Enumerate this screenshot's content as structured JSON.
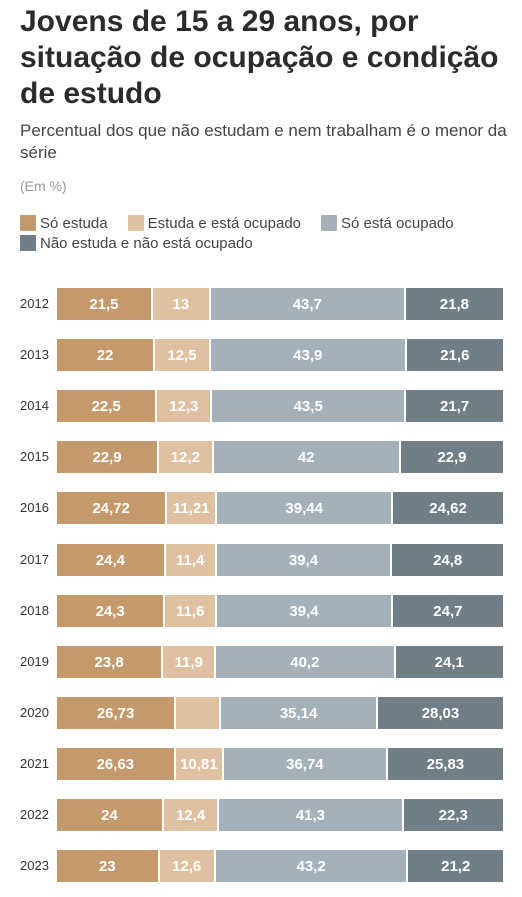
{
  "title": "Jovens de 15 a 29 anos, por situação de ocupação e condição de estudo",
  "subtitle": "Percentual dos que não estudam e nem trabalham é o menor da série",
  "unit": "(Em %)",
  "colors": {
    "so_estuda": "#c49a6c",
    "estuda_ocupado": "#dfc0a1",
    "so_ocupado": "#a4b1ba",
    "nem_nem": "#6f7e87"
  },
  "chart_data": {
    "type": "bar",
    "orientation": "horizontal",
    "stacked": true,
    "title": "Jovens de 15 a 29 anos, por situação de ocupação e condição de estudo",
    "subtitle": "Percentual dos que não estudam e nem trabalham é o menor da série",
    "unit": "(Em %)",
    "legend_position": "top",
    "categories": [
      "2012",
      "2013",
      "2014",
      "2015",
      "2016",
      "2017",
      "2018",
      "2019",
      "2020",
      "2021",
      "2022",
      "2023"
    ],
    "series": [
      {
        "name": "Só estuda",
        "color": "#c49a6c",
        "values": [
          21.5,
          22,
          22.5,
          22.9,
          24.72,
          24.4,
          24.3,
          23.8,
          26.73,
          26.63,
          24,
          23
        ],
        "labels": [
          "21,5",
          "22",
          "22,5",
          "22,9",
          "24,72",
          "24,4",
          "24,3",
          "23,8",
          "26,73",
          "26,63",
          "24",
          "23"
        ]
      },
      {
        "name": "Estuda e está ocupado",
        "color": "#dfc0a1",
        "values": [
          13,
          12.5,
          12.3,
          12.2,
          11.21,
          11.4,
          11.6,
          11.9,
          10.1,
          10.81,
          12.4,
          12.6
        ],
        "labels": [
          "13",
          "12,5",
          "12,3",
          "12,2",
          "11,21",
          "11,4",
          "11,6",
          "11,9",
          "",
          "10,81",
          "12,4",
          "12,6"
        ]
      },
      {
        "name": "Só está ocupado",
        "color": "#a4b1ba",
        "values": [
          43.7,
          43.9,
          43.5,
          42,
          39.44,
          39.4,
          39.4,
          40.2,
          35.14,
          36.74,
          41.3,
          43.2
        ],
        "labels": [
          "43,7",
          "43,9",
          "43,5",
          "42",
          "39,44",
          "39,4",
          "39,4",
          "40,2",
          "35,14",
          "36,74",
          "41,3",
          "43,2"
        ]
      },
      {
        "name": "Não estuda e não está ocupado",
        "color": "#6f7e87",
        "values": [
          21.8,
          21.6,
          21.7,
          22.9,
          24.62,
          24.8,
          24.7,
          24.1,
          28.03,
          25.83,
          22.3,
          21.2
        ],
        "labels": [
          "21,8",
          "21,6",
          "21,7",
          "22,9",
          "24,62",
          "24,8",
          "24,7",
          "24,1",
          "28,03",
          "25,83",
          "22,3",
          "21,2"
        ]
      }
    ]
  }
}
